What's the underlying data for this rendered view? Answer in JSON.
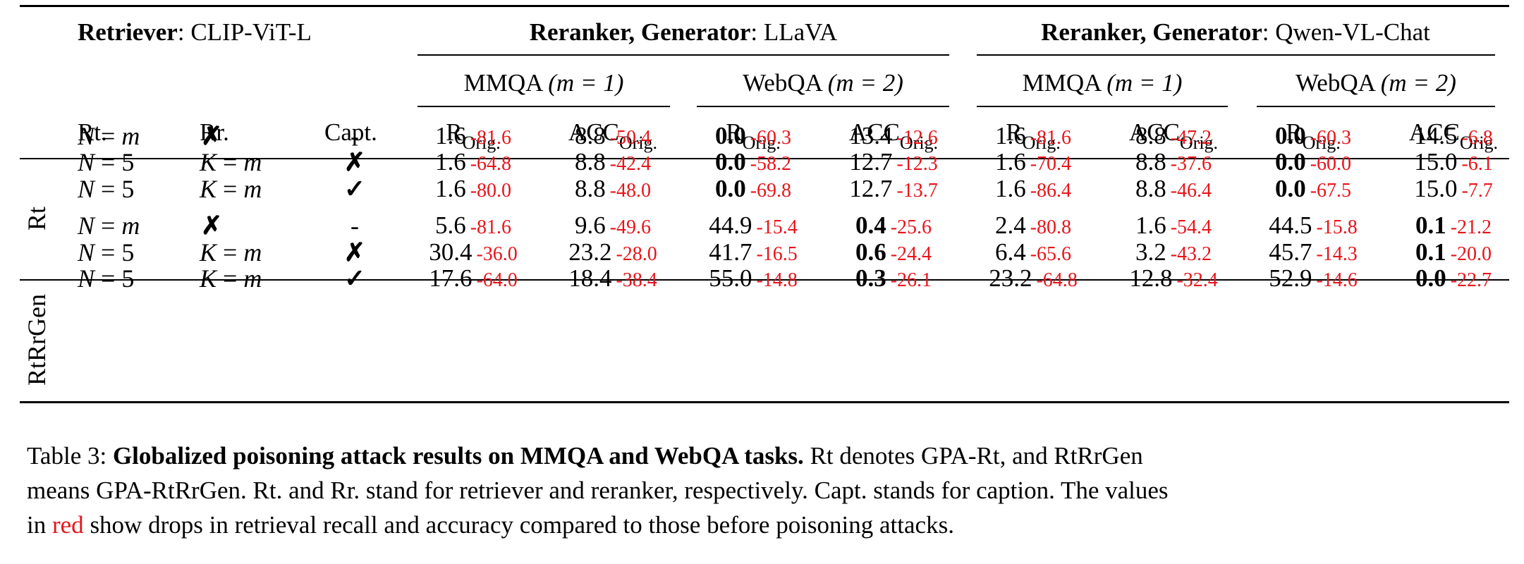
{
  "header": {
    "retriever_bold": "Retriever",
    "retriever_value": ": CLIP-ViT-L",
    "group1_bold": "Reranker, Generator",
    "group1_value": ": LLaVA",
    "group2_bold": "Reranker, Generator",
    "group2_value": ": Qwen-VL-Chat",
    "mmqa": "MMQA",
    "mmqa_m": "(m = 1)",
    "webqa": "WebQA",
    "webqa_m": "(m = 2)",
    "col_rt": "Rt.",
    "col_rr": "Rr.",
    "col_capt": "Capt.",
    "r_main": "R",
    "acc_main": "ACC",
    "orig_sub": "Orig."
  },
  "groups": {
    "rt": "Rt",
    "rtrrgen": "RtRrGen"
  },
  "rows": [
    {
      "rt": "N = m",
      "rr": "✗",
      "capt": "-",
      "vals": [
        [
          "1.6",
          "-81.6",
          false
        ],
        [
          "8.8",
          "-50.4",
          false
        ],
        [
          "0.0",
          "-60.3",
          true
        ],
        [
          "13.4",
          "-12.6",
          false
        ],
        [
          "1.6",
          "-81.6",
          false
        ],
        [
          "8.8",
          "-47.2",
          false
        ],
        [
          "0.0",
          "-60.3",
          true
        ],
        [
          "14.5",
          "-6.8",
          false
        ]
      ]
    },
    {
      "rt": "N = 5",
      "rr": "K = m",
      "capt": "✗",
      "vals": [
        [
          "1.6",
          "-64.8",
          false
        ],
        [
          "8.8",
          "-42.4",
          false
        ],
        [
          "0.0",
          "-58.2",
          true
        ],
        [
          "12.7",
          "-12.3",
          false
        ],
        [
          "1.6",
          "-70.4",
          false
        ],
        [
          "8.8",
          "-37.6",
          false
        ],
        [
          "0.0",
          "-60.0",
          true
        ],
        [
          "15.0",
          "-6.1",
          false
        ]
      ]
    },
    {
      "rt": "N = 5",
      "rr": "K = m",
      "capt": "✓",
      "vals": [
        [
          "1.6",
          "-80.0",
          false
        ],
        [
          "8.8",
          "-48.0",
          false
        ],
        [
          "0.0",
          "-69.8",
          true
        ],
        [
          "12.7",
          "-13.7",
          false
        ],
        [
          "1.6",
          "-86.4",
          false
        ],
        [
          "8.8",
          "-46.4",
          false
        ],
        [
          "0.0",
          "-67.5",
          true
        ],
        [
          "15.0",
          "-7.7",
          false
        ]
      ]
    },
    {
      "rt": "N = m",
      "rr": "✗",
      "capt": "-",
      "vals": [
        [
          "5.6",
          "-81.6",
          false
        ],
        [
          "9.6",
          "-49.6",
          false
        ],
        [
          "44.9",
          "-15.4",
          false
        ],
        [
          "0.4",
          "-25.6",
          true
        ],
        [
          "2.4",
          "-80.8",
          false
        ],
        [
          "1.6",
          "-54.4",
          false
        ],
        [
          "44.5",
          "-15.8",
          false
        ],
        [
          "0.1",
          "-21.2",
          true
        ]
      ]
    },
    {
      "rt": "N = 5",
      "rr": "K = m",
      "capt": "✗",
      "vals": [
        [
          "30.4",
          "-36.0",
          false
        ],
        [
          "23.2",
          "-28.0",
          false
        ],
        [
          "41.7",
          "-16.5",
          false
        ],
        [
          "0.6",
          "-24.4",
          true
        ],
        [
          "6.4",
          "-65.6",
          false
        ],
        [
          "3.2",
          "-43.2",
          false
        ],
        [
          "45.7",
          "-14.3",
          false
        ],
        [
          "0.1",
          "-20.0",
          true
        ]
      ]
    },
    {
      "rt": "N = 5",
      "rr": "K = m",
      "capt": "✓",
      "vals": [
        [
          "17.6",
          "-64.0",
          false
        ],
        [
          "18.4",
          "-38.4",
          false
        ],
        [
          "55.0",
          "-14.8",
          false
        ],
        [
          "0.3",
          "-26.1",
          true
        ],
        [
          "23.2",
          "-64.8",
          false
        ],
        [
          "12.8",
          "-32.4",
          false
        ],
        [
          "52.9",
          "-14.6",
          false
        ],
        [
          "0.0",
          "-22.7",
          true
        ]
      ]
    }
  ],
  "caption": {
    "prefix": "Table 3: ",
    "title": "Globalized poisoning attack results on MMQA and WebQA tasks.",
    "line1_rest": " Rt denotes GPA-Rt, and RtRrGen",
    "line2": "means GPA-RtRrGen. Rt. and Rr. stand for retriever and reranker, respectively. Capt. stands for caption. The values",
    "line3_pre": "in ",
    "line3_red": "red",
    "line3_post": " show drops in retrieval recall and accuracy compared to those before poisoning attacks."
  },
  "colors": {
    "drop_red": "#e8141a"
  }
}
